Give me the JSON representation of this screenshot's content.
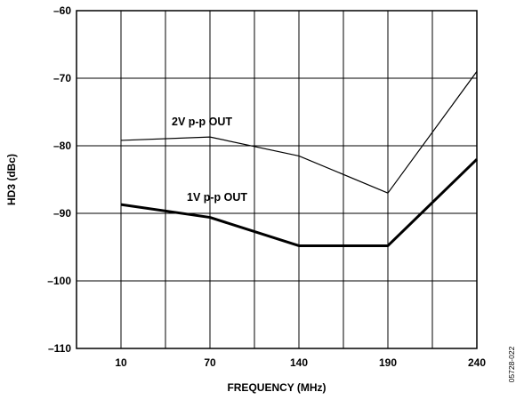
{
  "chart_data": {
    "type": "line",
    "title": "",
    "xlabel": "FREQUENCY (MHz)",
    "ylabel": "HD3 (dBc)",
    "categories": [
      "10",
      "70",
      "140",
      "190",
      "240"
    ],
    "x": [
      10,
      70,
      140,
      190,
      240
    ],
    "ylim": [
      -110,
      -60
    ],
    "yticks": [
      -60,
      -70,
      -80,
      -90,
      -100,
      -110
    ],
    "ytick_labels": [
      "–60",
      "–70",
      "–80",
      "–90",
      "–100",
      "–110"
    ],
    "grid": true,
    "series": [
      {
        "name": "2V p-p OUT",
        "values": [
          -79.2,
          -78.7,
          -81.5,
          -87.0,
          -69.0
        ],
        "color": "#000000",
        "line_weight": "thin"
      },
      {
        "name": "1V p-p OUT",
        "values": [
          -88.7,
          -90.6,
          -94.8,
          -94.8,
          -82.0
        ],
        "color": "#000000",
        "line_weight": "thick"
      }
    ],
    "annotations": [
      "2V p-p OUT",
      "1V p-p OUT"
    ],
    "figure_id": "05728-022"
  }
}
